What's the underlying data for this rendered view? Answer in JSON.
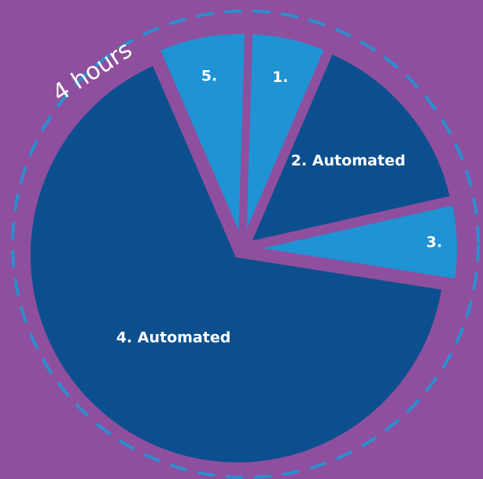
{
  "chart_data": {
    "type": "pie",
    "annotation": "4 hours",
    "categories": [
      "1.",
      "2. Automated",
      "3.",
      "4. Automated",
      "5."
    ],
    "values": [
      6,
      15,
      6,
      66,
      7
    ],
    "colors": [
      "#1f93d3",
      "#0b4f8e",
      "#1f93d3",
      "#0b4f8e",
      "#1f93d3"
    ]
  }
}
